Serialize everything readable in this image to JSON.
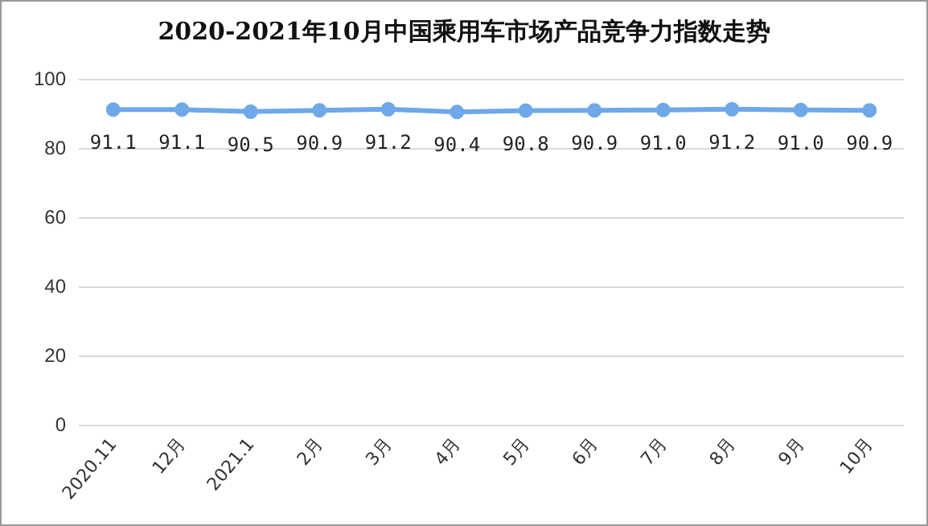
{
  "chart_data": {
    "type": "line",
    "title": "2020-2021年10月中国乘用车市场产品竞争力指数走势",
    "categories": [
      "2020.11",
      "12月",
      "2021.1",
      "2月",
      "3月",
      "4月",
      "5月",
      "6月",
      "7月",
      "8月",
      "9月",
      "10月"
    ],
    "series": [
      {
        "color": "#6fa8e8",
        "values": [
          91.1,
          91.1,
          90.5,
          90.9,
          91.2,
          90.4,
          90.8,
          90.9,
          91.0,
          91.2,
          91.0,
          90.9
        ],
        "value_labels": [
          "91.1",
          "91.1",
          "90.5",
          "90.9",
          "91.2",
          "90.4",
          "90.8",
          "90.9",
          "91.0",
          "91.2",
          "91.0",
          "90.9"
        ]
      }
    ],
    "ylim": [
      0,
      100
    ],
    "yticks": [
      0,
      20,
      40,
      60,
      80,
      100
    ],
    "grid": "y",
    "marker": "circle",
    "line_style": "solid"
  }
}
